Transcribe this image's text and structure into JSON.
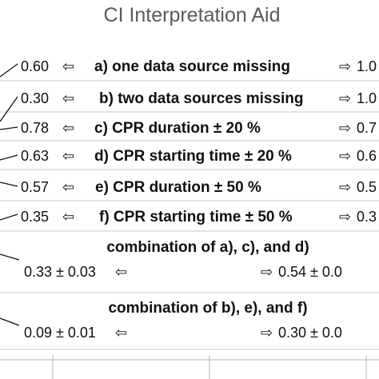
{
  "chart_data": {
    "type": "table",
    "title": "CI Interpretation Aid",
    "left_arrow": "⇦",
    "right_arrow": "⇨",
    "rows": [
      {
        "label": "a) one data source missing",
        "left": "0.60",
        "right": "1.0"
      },
      {
        "label": "b) two data sources missing",
        "left": "0.30",
        "right": "1.0"
      },
      {
        "label": "c) CPR duration ± 20 %",
        "left": "0.78",
        "right": "0.7"
      },
      {
        "label": "d) CPR starting time ± 20 %",
        "left": "0.63",
        "right": "0.6"
      },
      {
        "label": "e) CPR duration ± 50 %",
        "left": "0.57",
        "right": "0.5"
      },
      {
        "label": "f) CPR starting time ± 50 %",
        "left": "0.35",
        "right": "0.3"
      },
      {
        "label": "combination of a), c), and d)",
        "left": "0.33 ± 0.03",
        "right": "0.54 ± 0.0"
      },
      {
        "label": "combination of b), e), and f)",
        "left": "0.09 ± 0.01",
        "right": "0.30 ± 0.0"
      }
    ]
  }
}
